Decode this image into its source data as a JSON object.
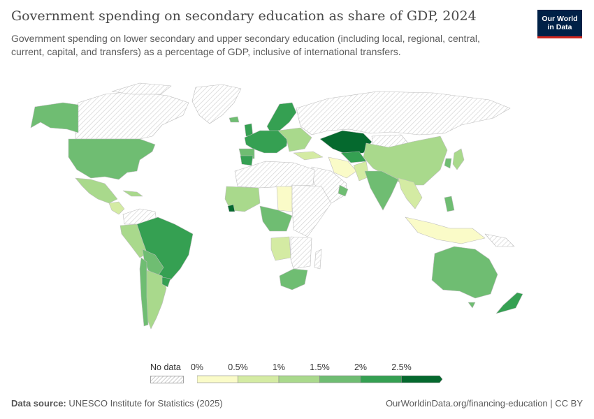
{
  "header": {
    "title": "Government spending on secondary education as share of GDP, 2024",
    "subtitle": "Government spending on lower secondary and upper secondary education (including local, regional, central, current, capital, and transfers) as a percentage of GDP, inclusive of international transfers."
  },
  "logo": {
    "line1": "Our World",
    "line2": "in Data"
  },
  "legend": {
    "no_data_label": "No data",
    "ticks": [
      "0%",
      "0.5%",
      "1%",
      "1.5%",
      "2%",
      "2.5%"
    ],
    "bins": [
      {
        "from": 0,
        "to": 0.5,
        "color": "#fafbc8"
      },
      {
        "from": 0.5,
        "to": 1,
        "color": "#d4eba3"
      },
      {
        "from": 1,
        "to": 1.5,
        "color": "#a9d98c"
      },
      {
        "from": 1.5,
        "to": 2,
        "color": "#6fbd72"
      },
      {
        "from": 2,
        "to": 2.5,
        "color": "#35a052"
      },
      {
        "from": 2.5,
        "to": 3,
        "color": "#05692e"
      }
    ],
    "no_data_color": "#e8e8e8"
  },
  "footer": {
    "source_label": "Data source:",
    "source_text": "UNESCO Institute for Statistics (2025)",
    "url": "OurWorldinData.org/financing-education | CC BY"
  }
}
